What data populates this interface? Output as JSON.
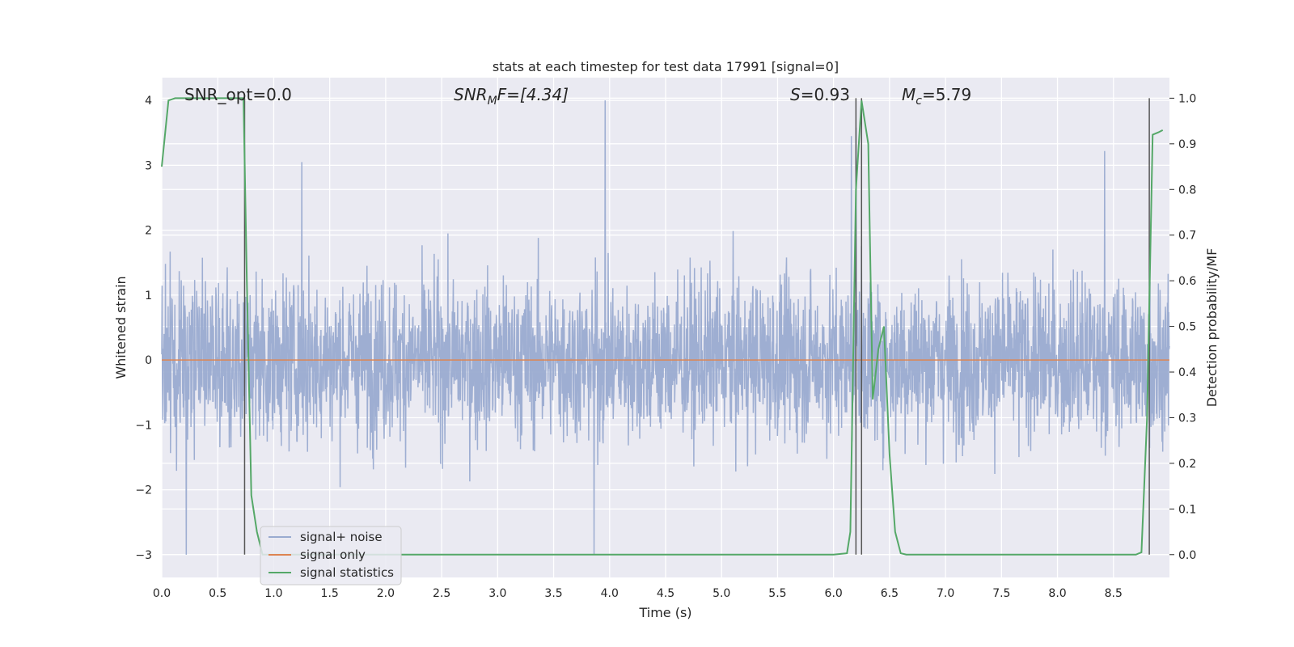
{
  "chart_data": {
    "type": "line",
    "title": "stats at each timestep for test data 17991 [signal=0]",
    "xlabel": "Time (s)",
    "ylabel": "Whitened strain",
    "y2label": "Detection probability/MF",
    "xlim": [
      0,
      9
    ],
    "ylim": [
      -3.35,
      4.35
    ],
    "y2lim": [
      -0.05,
      1.045
    ],
    "xticks": [
      "0.0",
      "0.5",
      "1.0",
      "1.5",
      "2.0",
      "2.5",
      "3.0",
      "3.5",
      "4.0",
      "4.5",
      "5.0",
      "5.5",
      "6.0",
      "6.5",
      "7.0",
      "7.5",
      "8.0",
      "8.5"
    ],
    "yticks": [
      "−3",
      "−2",
      "−1",
      "0",
      "1",
      "2",
      "3",
      "4"
    ],
    "y2ticks": [
      "0.0",
      "0.1",
      "0.2",
      "0.3",
      "0.4",
      "0.5",
      "0.6",
      "0.7",
      "0.8",
      "0.9",
      "1.0"
    ],
    "grid": true,
    "legend_position": "bottom-left",
    "annotations": {
      "snr_opt": "SNR_opt=0.0",
      "snr_mf_prefix": "SNR",
      "snr_mf_sub": "M",
      "snr_mf_suffix": "F=[4.34]",
      "s_prefix": "S",
      "s_suffix": "=0.93",
      "mc_prefix": "M",
      "mc_sub": "c",
      "mc_suffix": "=5.79"
    },
    "vlines": [
      0.74,
      6.2,
      6.25,
      8.82
    ],
    "series": [
      {
        "name": "signal+ noise",
        "color": "#9aabd0",
        "axis": "left",
        "noise_std": 0.62,
        "envelope_peak_max": 4.0,
        "envelope_peak_min": -3.0,
        "peaks": [
          [
            0.22,
            -3.0
          ],
          [
            1.25,
            3.05
          ],
          [
            3.96,
            4.0
          ],
          [
            6.16,
            3.45
          ],
          [
            6.2,
            3.58
          ],
          [
            8.42,
            3.22
          ],
          [
            3.86,
            -3.0
          ]
        ]
      },
      {
        "name": "signal only",
        "color": "#dd8452",
        "axis": "left",
        "x": [
          0,
          9
        ],
        "y": [
          0,
          0
        ]
      },
      {
        "name": "signal statistics",
        "color": "#55a868",
        "axis": "right",
        "x": [
          0,
          0.06,
          0.12,
          0.2,
          0.6,
          0.73,
          0.76,
          0.8,
          0.85,
          0.9,
          1.0,
          6.0,
          6.12,
          6.15,
          6.2,
          6.25,
          6.31,
          6.35,
          6.4,
          6.45,
          6.5,
          6.55,
          6.6,
          6.65,
          8.7,
          8.75,
          8.8,
          8.85,
          8.9,
          8.94
        ],
        "y": [
          0.85,
          0.995,
          1.0,
          1.0,
          1.0,
          1.0,
          0.6,
          0.13,
          0.05,
          0.0,
          0.0,
          0.0,
          0.003,
          0.05,
          0.8,
          0.995,
          0.9,
          0.34,
          0.45,
          0.5,
          0.22,
          0.05,
          0.003,
          0.0,
          0.0,
          0.005,
          0.3,
          0.92,
          0.925,
          0.93
        ]
      }
    ]
  }
}
